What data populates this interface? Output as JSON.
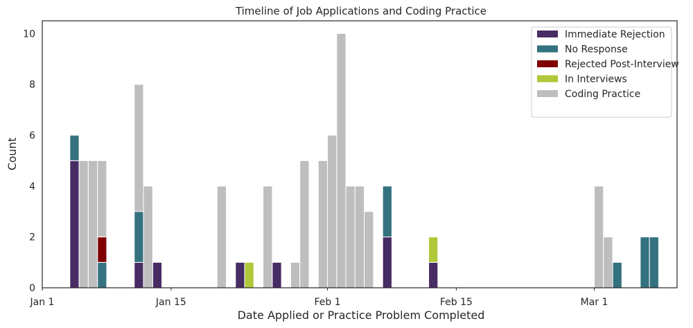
{
  "chart_data": {
    "type": "bar",
    "stacked": true,
    "title": "Timeline of Job Applications and Coding Practice",
    "xlabel": "Date Applied or Practice Problem Completed",
    "ylabel": "Count",
    "x_range": [
      "2024-01-01",
      "2024-03-10"
    ],
    "ylim": [
      0,
      10.5
    ],
    "y_ticks": [
      0,
      2,
      4,
      6,
      8,
      10
    ],
    "x_ticks": [
      {
        "date": "2024-01-01",
        "label": "Jan 1"
      },
      {
        "date": "2024-01-15",
        "label": "Jan 15"
      },
      {
        "date": "2024-02-01",
        "label": "Feb 1"
      },
      {
        "date": "2024-02-15",
        "label": "Feb 15"
      },
      {
        "date": "2024-03-01",
        "label": "Mar 1"
      }
    ],
    "bin_days": 1,
    "grid": false,
    "legend_position": "top-right",
    "series": [
      {
        "name": "Immediate Rejection",
        "color": "#482c64",
        "points": [
          {
            "date": "2024-01-04",
            "value": 5
          },
          {
            "date": "2024-01-11",
            "value": 1
          },
          {
            "date": "2024-01-13",
            "value": 1
          },
          {
            "date": "2024-01-22",
            "value": 1
          },
          {
            "date": "2024-01-26",
            "value": 1
          },
          {
            "date": "2024-02-07",
            "value": 2
          },
          {
            "date": "2024-02-12",
            "value": 1
          }
        ]
      },
      {
        "name": "No Response",
        "color": "#35727f",
        "points": [
          {
            "date": "2024-01-04",
            "value": 1
          },
          {
            "date": "2024-01-07",
            "value": 1
          },
          {
            "date": "2024-01-11",
            "value": 2
          },
          {
            "date": "2024-02-07",
            "value": 2
          },
          {
            "date": "2024-03-03",
            "value": 1
          },
          {
            "date": "2024-03-06",
            "value": 2
          },
          {
            "date": "2024-03-07",
            "value": 2
          }
        ]
      },
      {
        "name": "Rejected Post-Interview",
        "color": "#7f0000",
        "points": [
          {
            "date": "2024-01-07",
            "value": 1
          }
        ]
      },
      {
        "name": "In Interviews",
        "color": "#b0c83a",
        "points": [
          {
            "date": "2024-01-23",
            "value": 1
          },
          {
            "date": "2024-02-12",
            "value": 1
          }
        ]
      },
      {
        "name": "Coding Practice",
        "color": "#bebebe",
        "points": [
          {
            "date": "2024-01-05",
            "value": 5
          },
          {
            "date": "2024-01-06",
            "value": 5
          },
          {
            "date": "2024-01-07",
            "value": 3
          },
          {
            "date": "2024-01-11",
            "value": 5
          },
          {
            "date": "2024-01-12",
            "value": 4
          },
          {
            "date": "2024-01-20",
            "value": 4
          },
          {
            "date": "2024-01-25",
            "value": 4
          },
          {
            "date": "2024-01-28",
            "value": 1
          },
          {
            "date": "2024-01-29",
            "value": 5
          },
          {
            "date": "2024-01-31",
            "value": 5
          },
          {
            "date": "2024-02-01",
            "value": 6
          },
          {
            "date": "2024-02-02",
            "value": 10
          },
          {
            "date": "2024-02-03",
            "value": 4
          },
          {
            "date": "2024-02-04",
            "value": 4
          },
          {
            "date": "2024-02-05",
            "value": 3
          },
          {
            "date": "2024-03-01",
            "value": 4
          },
          {
            "date": "2024-03-02",
            "value": 2
          }
        ]
      }
    ]
  }
}
